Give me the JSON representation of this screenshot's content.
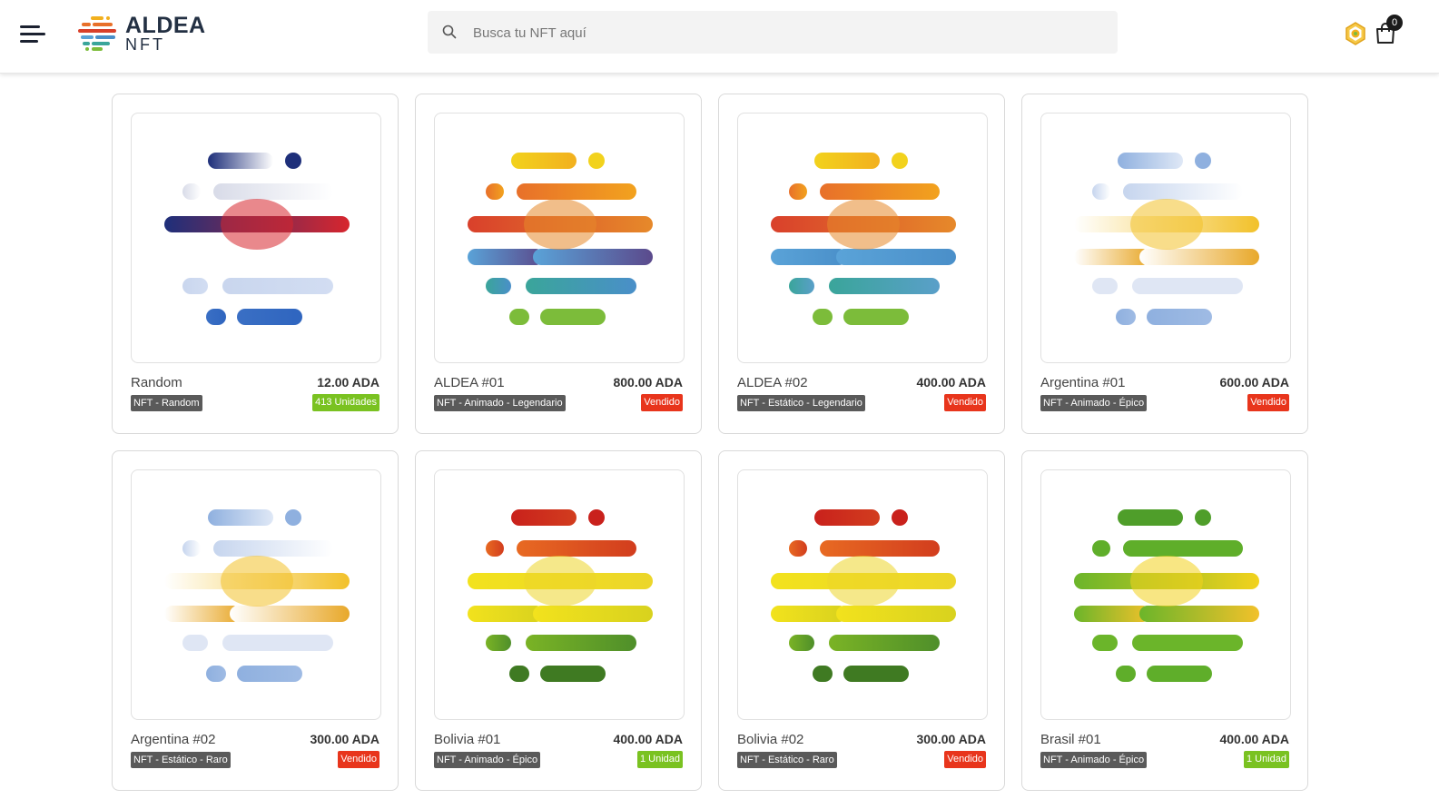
{
  "header": {
    "logo_title": "ALDEA",
    "logo_sub": "NFT",
    "search_placeholder": "Busca tu NFT aquí",
    "cart_count": "0"
  },
  "colors": {
    "sold": "#e8351c",
    "available": "#7ac221",
    "tag_bg": "#5a5a5a"
  },
  "products": [
    {
      "name": "Random",
      "price": "12.00 ADA",
      "category": "NFT - Random",
      "status": "413 Unidades",
      "status_type": "available",
      "art": "honduras"
    },
    {
      "name": "ALDEA #01",
      "price": "800.00 ADA",
      "category": "NFT - Animado - Legendario",
      "status": "Vendido",
      "status_type": "sold",
      "art": "aldea"
    },
    {
      "name": "ALDEA #02",
      "price": "400.00 ADA",
      "category": "NFT - Estático - Legendario",
      "status": "Vendido",
      "status_type": "sold",
      "art": "aldea2"
    },
    {
      "name": "Argentina #01",
      "price": "600.00 ADA",
      "category": "NFT - Animado - Épico",
      "status": "Vendido",
      "status_type": "sold",
      "art": "argentina"
    },
    {
      "name": "Argentina #02",
      "price": "300.00 ADA",
      "category": "NFT - Estático - Raro",
      "status": "Vendido",
      "status_type": "sold",
      "art": "argentina2"
    },
    {
      "name": "Bolivia #01",
      "price": "400.00 ADA",
      "category": "NFT - Animado - Épico",
      "status": "1 Unidad",
      "status_type": "available",
      "art": "bolivia"
    },
    {
      "name": "Bolivia #02",
      "price": "300.00 ADA",
      "category": "NFT - Estático - Raro",
      "status": "Vendido",
      "status_type": "sold",
      "art": "bolivia2"
    },
    {
      "name": "Brasil #01",
      "price": "400.00 ADA",
      "category": "NFT - Animado - Épico",
      "status": "1 Unidad",
      "status_type": "available",
      "art": "brasil"
    }
  ]
}
